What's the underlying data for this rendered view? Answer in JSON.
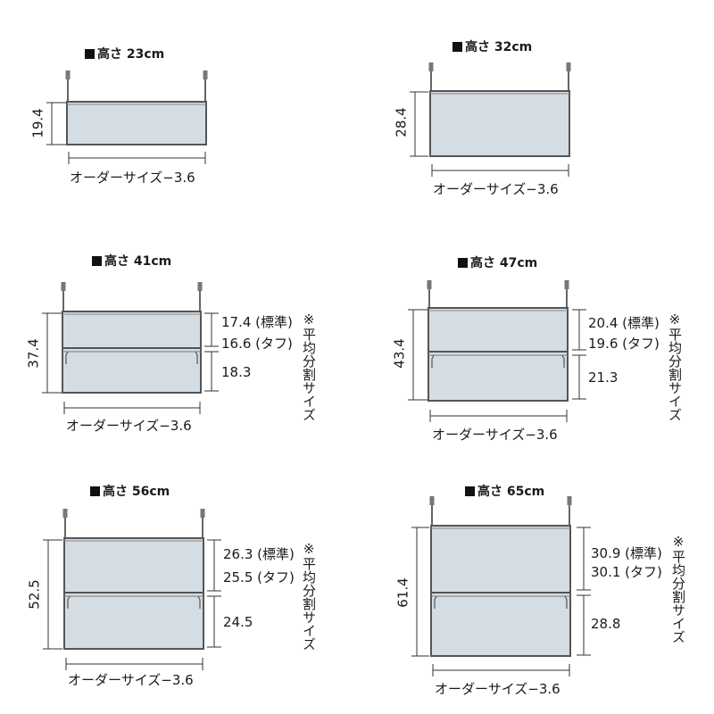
{
  "common": {
    "width_label": "オーダーサイズ−3.6",
    "note_label": "※平均分割サイズ"
  },
  "panels": [
    {
      "title": "高さ 23cm",
      "total": "19.4",
      "upper": "",
      "upper2": "",
      "lower": ""
    },
    {
      "title": "高さ 32cm",
      "total": "28.4",
      "upper": "",
      "upper2": "",
      "lower": ""
    },
    {
      "title": "高さ 41cm",
      "total": "37.4",
      "upper": "17.4 (標準)",
      "upper2": "16.6 (タフ)",
      "lower": "18.3"
    },
    {
      "title": "高さ 47cm",
      "total": "43.4",
      "upper": "20.4 (標準)",
      "upper2": "19.6 (タフ)",
      "lower": "21.3"
    },
    {
      "title": "高さ 56cm",
      "total": "52.5",
      "upper": "26.3 (標準)",
      "upper2": "25.5 (タフ)",
      "lower": "24.5"
    },
    {
      "title": "高さ 65cm",
      "total": "61.4",
      "upper": "30.9 (標準)",
      "upper2": "30.1 (タフ)",
      "lower": "28.8"
    }
  ]
}
